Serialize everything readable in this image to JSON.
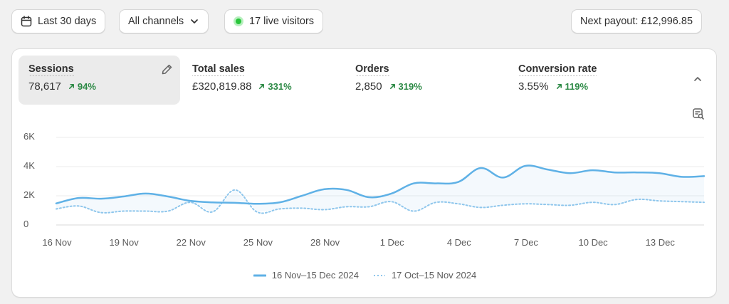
{
  "toolbar": {
    "date_range": "Last 30 days",
    "channels": "All channels",
    "live_visitors": "17 live visitors",
    "payout": "Next payout: £12,996.85"
  },
  "metrics": [
    {
      "label": "Sessions",
      "value": "78,617",
      "delta": "94%"
    },
    {
      "label": "Total sales",
      "value": "£320,819.88",
      "delta": "331%"
    },
    {
      "label": "Orders",
      "value": "2,850",
      "delta": "319%"
    },
    {
      "label": "Conversion rate",
      "value": "3.55%",
      "delta": "119%"
    }
  ],
  "icons": {
    "date": "calendar-icon",
    "channels": "chevron-down-icon",
    "live": "live-dot-icon",
    "edit": "pencil-icon",
    "collapse": "chevron-up-icon",
    "explore": "report-search-icon",
    "delta": "arrow-up-right-icon"
  },
  "colors": {
    "current": "#5fb1e6",
    "previous": "#8ec6ec",
    "positive": "#2d8a46",
    "live": "#29c53b"
  },
  "chart_data": {
    "type": "line",
    "y_ticks": [
      "6K",
      "4K",
      "2K",
      "0"
    ],
    "ylim": [
      0,
      6000
    ],
    "x_tick_labels": [
      "16 Nov",
      "19 Nov",
      "22 Nov",
      "25 Nov",
      "28 Nov",
      "1 Dec",
      "4 Dec",
      "7 Dec",
      "10 Dec",
      "13 Dec"
    ],
    "grid": true,
    "legend_position": "bottom",
    "series": [
      {
        "name": "16 Nov–15 Dec 2024",
        "style": "solid",
        "values": [
          1480,
          1850,
          1800,
          1950,
          2150,
          1950,
          1650,
          1550,
          1520,
          1450,
          1550,
          2000,
          2450,
          2400,
          1900,
          2150,
          2850,
          2850,
          2950,
          3900,
          3250,
          4050,
          3800,
          3550,
          3750,
          3600,
          3600,
          3550,
          3300,
          3350
        ]
      },
      {
        "name": "17 Oct–15 Nov 2024",
        "style": "dotted",
        "values": [
          1100,
          1300,
          850,
          950,
          950,
          950,
          1550,
          900,
          2400,
          880,
          1100,
          1150,
          1050,
          1250,
          1250,
          1600,
          950,
          1550,
          1450,
          1200,
          1350,
          1450,
          1400,
          1350,
          1550,
          1400,
          1750,
          1650,
          1600,
          1550
        ]
      }
    ]
  }
}
